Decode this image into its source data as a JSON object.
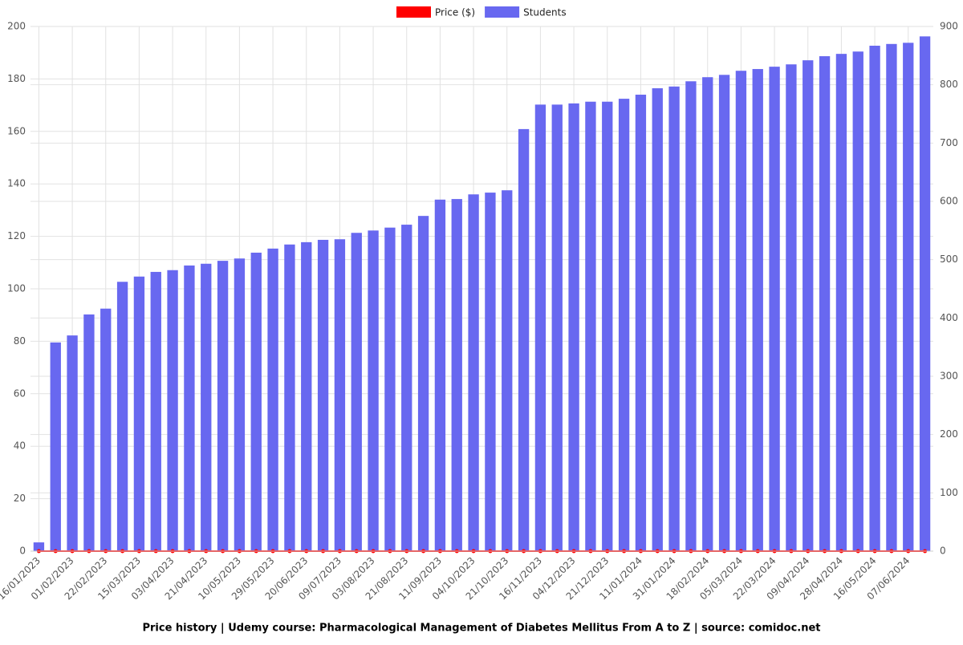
{
  "chart_data": {
    "type": "bar",
    "title": "Price history | Udemy course: Pharmacological Management of Diabetes Mellitus From A to Z | source: comidoc.net",
    "categories": [
      "16/01/2023",
      null,
      "01/02/2023",
      null,
      "22/02/2023",
      null,
      "15/03/2023",
      null,
      "03/04/2023",
      null,
      "21/04/2023",
      null,
      "10/05/2023",
      null,
      "29/05/2023",
      null,
      "20/06/2023",
      null,
      "09/07/2023",
      null,
      "03/08/2023",
      null,
      "21/08/2023",
      null,
      "11/09/2023",
      null,
      "04/10/2023",
      null,
      "21/10/2023",
      null,
      "16/11/2023",
      null,
      "04/12/2023",
      null,
      "21/12/2023",
      null,
      "11/01/2024",
      null,
      "31/01/2024",
      null,
      "18/02/2024",
      null,
      "05/03/2024",
      null,
      "22/03/2024",
      null,
      "09/04/2024",
      null,
      "28/04/2024",
      null,
      "16/05/2024",
      null,
      "07/06/2024",
      null
    ],
    "series": [
      {
        "name": "Price ($)",
        "color": "#ff0000",
        "type": "line",
        "values": [
          0,
          0,
          0,
          0,
          0,
          0,
          0,
          0,
          0,
          0,
          0,
          0,
          0,
          0,
          0,
          0,
          0,
          0,
          0,
          0,
          0,
          0,
          0,
          0,
          0,
          0,
          0,
          0,
          0,
          0,
          0,
          0,
          0,
          0,
          0,
          0,
          0,
          0,
          0,
          0,
          0,
          0,
          0,
          0,
          0,
          0,
          0,
          0,
          0,
          0,
          0,
          0,
          0,
          0
        ]
      },
      {
        "name": "Students",
        "color": "#6868f0",
        "type": "bar",
        "axis": "y2",
        "values": [
          15,
          358,
          370,
          406,
          416,
          462,
          471,
          479,
          482,
          490,
          493,
          498,
          502,
          512,
          519,
          526,
          530,
          534,
          535,
          546,
          550,
          555,
          560,
          575,
          603,
          604,
          612,
          615,
          619,
          724,
          766,
          766,
          768,
          771,
          771,
          776,
          783,
          794,
          797,
          806,
          813,
          817,
          824,
          827,
          831,
          835,
          842,
          849,
          853,
          857,
          867,
          870,
          872,
          883
        ]
      }
    ],
    "ylim": [
      0,
      200
    ],
    "yticks": [
      0,
      20,
      40,
      60,
      80,
      100,
      120,
      140,
      160,
      180,
      200
    ],
    "y2lim": [
      0,
      900
    ],
    "y2ticks": [
      0,
      100,
      200,
      300,
      400,
      500,
      600,
      700,
      800,
      900
    ],
    "grid": true,
    "legend": "top"
  }
}
